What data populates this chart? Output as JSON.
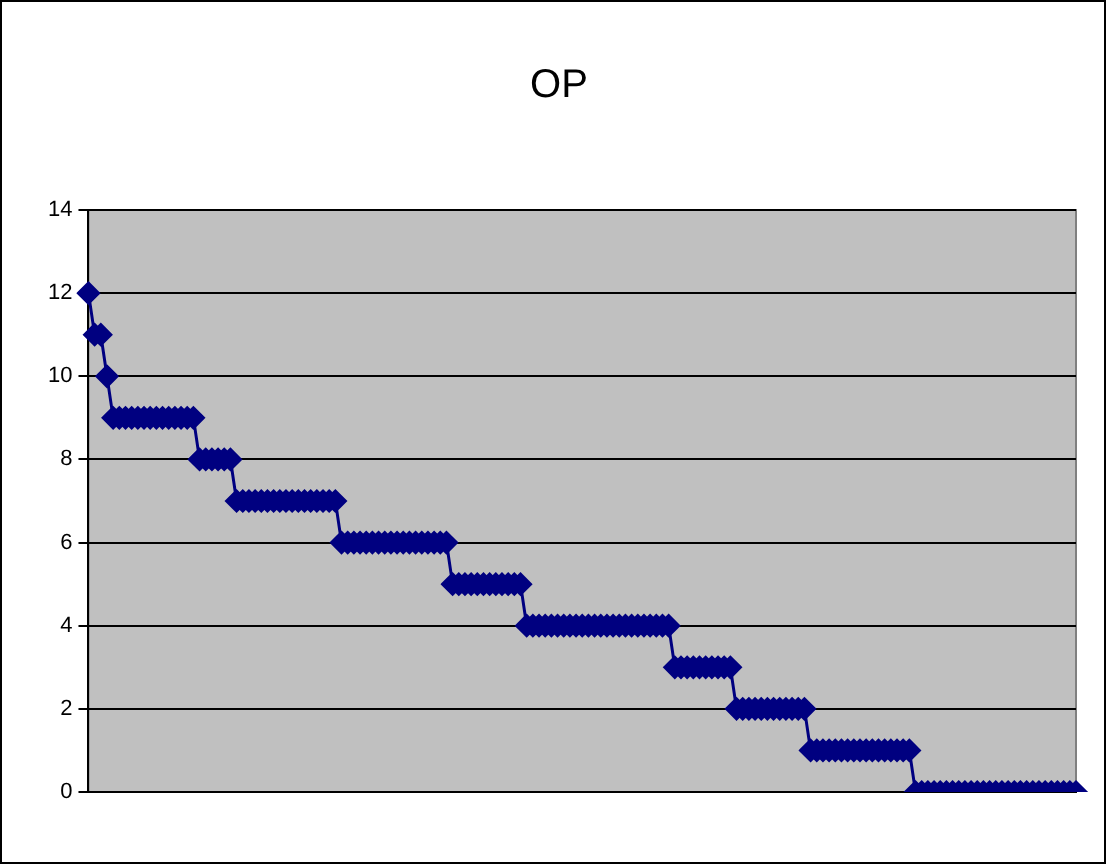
{
  "chart_data": {
    "type": "line",
    "title": "OP",
    "categories": [
      null,
      null,
      null,
      null,
      null,
      null,
      null,
      null,
      null,
      null,
      null,
      null,
      null,
      null,
      null,
      null,
      null,
      null,
      null,
      null,
      null,
      null,
      null,
      null,
      null,
      null,
      null,
      null,
      null,
      null,
      null,
      null,
      null,
      null,
      null,
      null,
      null,
      null,
      null,
      null,
      null,
      null,
      null,
      null,
      null,
      null,
      null,
      null,
      null,
      null,
      null,
      null,
      null,
      null,
      null,
      null,
      null,
      null,
      null,
      null,
      null,
      null,
      null,
      null,
      null,
      null,
      null,
      null,
      null,
      null,
      null,
      null,
      null,
      null,
      null,
      null,
      null,
      null,
      null,
      null,
      null,
      null,
      null,
      null,
      null,
      null,
      null,
      null,
      null,
      null,
      null,
      null,
      null,
      null,
      null,
      null,
      null,
      null,
      null,
      null,
      null,
      null,
      null,
      null,
      null,
      null,
      null,
      null,
      null,
      null,
      null,
      null,
      null,
      null,
      null,
      null,
      null,
      null,
      null,
      null,
      null,
      null,
      null,
      null,
      null,
      null,
      null,
      null,
      null,
      null,
      null,
      null,
      null,
      null,
      null,
      null,
      null,
      null,
      null,
      null,
      null,
      null,
      null,
      null,
      null,
      null,
      null,
      null,
      null,
      null,
      null,
      null,
      null,
      null,
      null,
      null,
      null,
      null,
      null,
      null,
      null
    ],
    "series": [
      {
        "color": "#000080",
        "values": [
          12,
          11,
          11,
          10,
          9,
          9,
          9,
          9,
          9,
          9,
          9,
          9,
          9,
          9,
          9,
          9,
          9,
          9,
          8,
          8,
          8,
          8,
          8,
          8,
          7,
          7,
          7,
          7,
          7,
          7,
          7,
          7,
          7,
          7,
          7,
          7,
          7,
          7,
          7,
          7,
          7,
          6,
          6,
          6,
          6,
          6,
          6,
          6,
          6,
          6,
          6,
          6,
          6,
          6,
          6,
          6,
          6,
          6,
          6,
          5,
          5,
          5,
          5,
          5,
          5,
          5,
          5,
          5,
          5,
          5,
          5,
          4,
          4,
          4,
          4,
          4,
          4,
          4,
          4,
          4,
          4,
          4,
          4,
          4,
          4,
          4,
          4,
          4,
          4,
          4,
          4,
          4,
          4,
          4,
          4,
          3,
          3,
          3,
          3,
          3,
          3,
          3,
          3,
          3,
          3,
          2,
          2,
          2,
          2,
          2,
          2,
          2,
          2,
          2,
          2,
          2,
          2,
          1,
          1,
          1,
          1,
          1,
          1,
          1,
          1,
          1,
          1,
          1,
          1,
          1,
          1,
          1,
          1,
          1,
          0,
          0,
          0,
          0,
          0,
          0,
          0,
          0,
          0,
          0,
          0,
          0,
          0,
          0,
          0,
          0,
          0,
          0,
          0,
          0,
          0,
          0,
          0,
          0,
          0,
          0,
          0
        ]
      }
    ],
    "ylim": [
      0,
      14
    ],
    "yticks": [
      0,
      2,
      4,
      6,
      8,
      10,
      12,
      14
    ],
    "grid": "y",
    "legend": false,
    "marker": "diamond",
    "line_style": "solid",
    "tick_labels": "y"
  }
}
